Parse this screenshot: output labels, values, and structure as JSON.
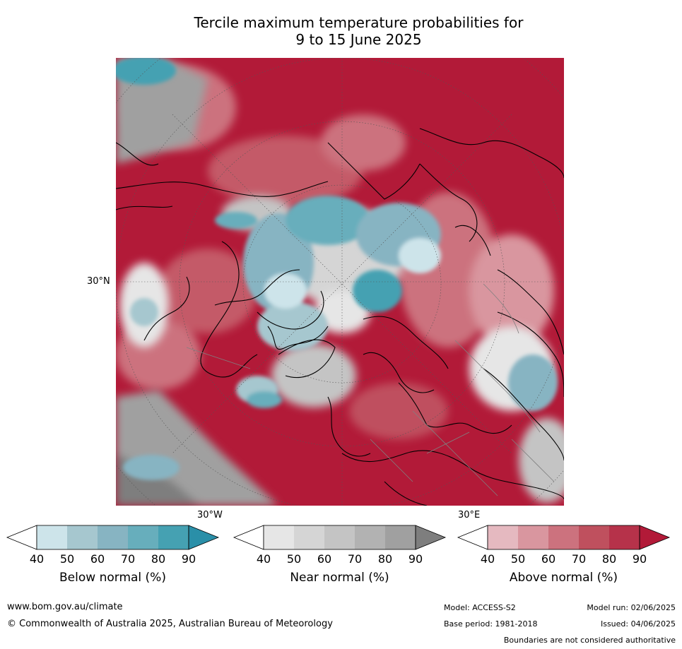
{
  "title_line1": "Tercile maximum temperature probabilities for",
  "title_line2": "9 to 15 June 2025",
  "graticule": {
    "lat_label": "30°N",
    "lon_label_west": "30°W",
    "lon_label_east": "30°E"
  },
  "colorbars": [
    {
      "label": "Below normal (%)",
      "ticks": [
        "40",
        "50",
        "60",
        "70",
        "80",
        "90"
      ],
      "colors": [
        "#ffffff",
        "#cde4ea",
        "#a6c7cf",
        "#87b4c2",
        "#67aebc",
        "#45a1b2",
        "#2a8fa8"
      ]
    },
    {
      "label": "Near normal (%)",
      "ticks": [
        "40",
        "50",
        "60",
        "70",
        "80",
        "90"
      ],
      "colors": [
        "#ffffff",
        "#e6e6e6",
        "#d5d5d5",
        "#c4c4c4",
        "#b2b2b2",
        "#a0a0a0",
        "#7e7e7e"
      ]
    },
    {
      "label": "Above normal (%)",
      "ticks": [
        "40",
        "50",
        "60",
        "70",
        "80",
        "90"
      ],
      "colors": [
        "#ffffff",
        "#e5b9c0",
        "#d9969f",
        "#cc727e",
        "#bf505e",
        "#b6324a",
        "#b21a38"
      ]
    }
  ],
  "footer": {
    "url": "www.bom.gov.au/climate",
    "copyright": "© Commonwealth of Australia 2025, Australian Bureau of Meteorology",
    "model": "Model: ACCESS-S2",
    "model_run": "Model run: 02/06/2025",
    "base_period": "Base period: 1981-2018",
    "issued": "Issued: 04/06/2025",
    "disclaimer": "Boundaries are not considered authoritative"
  }
}
